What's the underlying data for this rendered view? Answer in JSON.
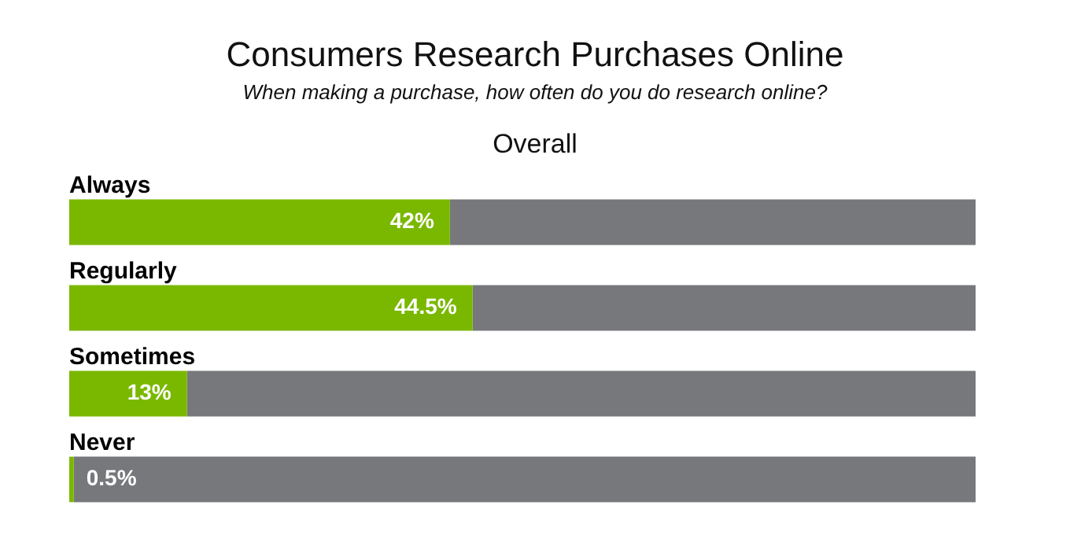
{
  "chart_data": {
    "type": "bar",
    "orientation": "horizontal",
    "stacked": true,
    "title": "Consumers Research Purchases Online",
    "subtitle": "When making a purchase, how often do you do research online?",
    "annotations": [
      "Overall"
    ],
    "categories": [
      "Always",
      "Regularly",
      "Sometimes",
      "Never"
    ],
    "xlim": [
      0,
      100
    ],
    "tick_labels": "y",
    "legend": false,
    "series": [
      {
        "color": "#7ab800",
        "values": [
          42,
          44.5,
          13,
          0.5
        ],
        "value_labels": [
          "42%",
          "44.5%",
          "13%",
          "0.5%"
        ]
      },
      {
        "color": "#77787b",
        "values": [
          58,
          55.5,
          87,
          99.5
        ]
      }
    ]
  }
}
